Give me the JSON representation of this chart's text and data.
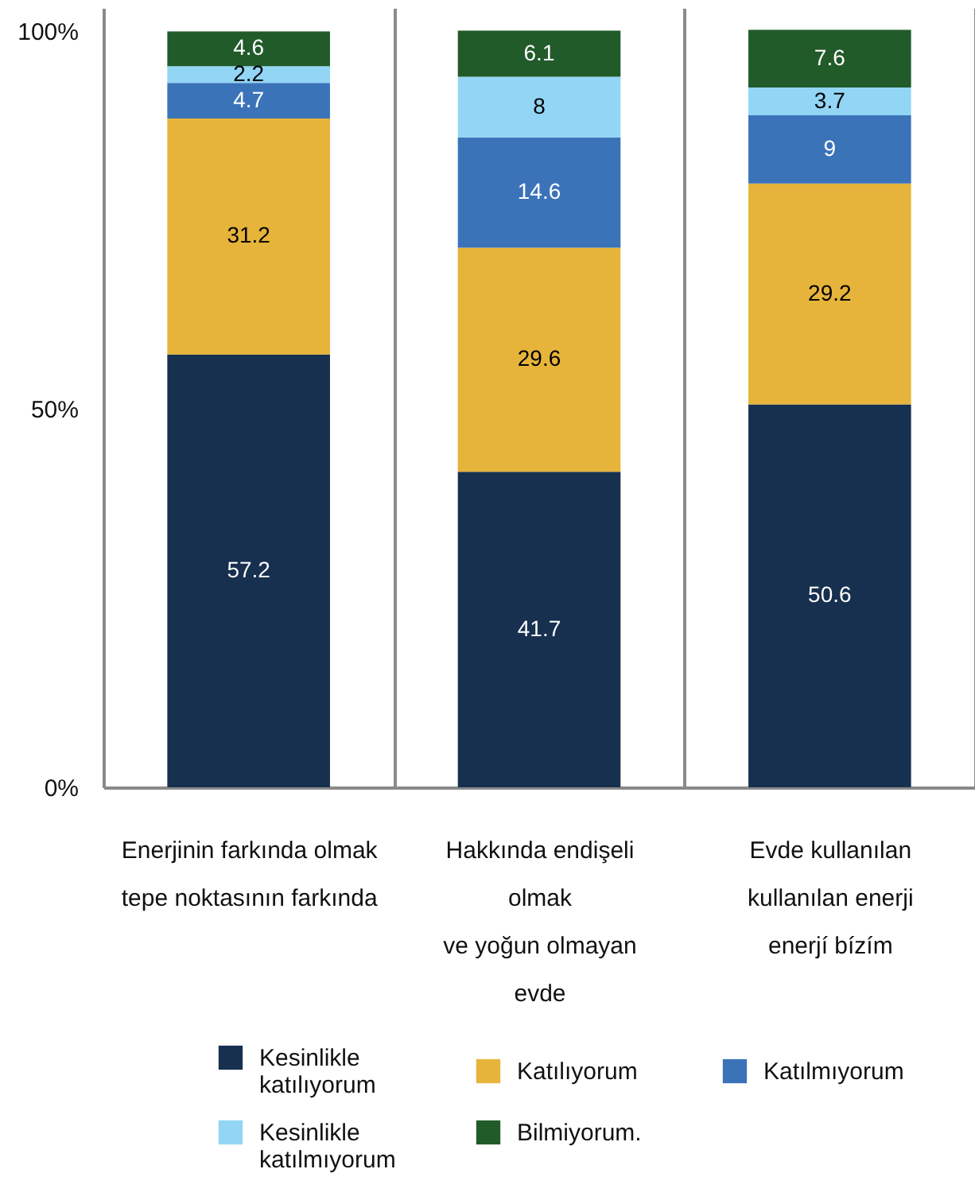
{
  "chart_data": {
    "type": "bar",
    "stacked": true,
    "data_labels": true,
    "grid": "x",
    "legend": "bottom",
    "categories": [
      "Enerjinin farkında olmak\ntepe noktasının farkında",
      "Hakkında endişeli\nolmak\nve yoğun olmayan\nevde",
      "Evde kullanılan\nkullanılan enerji\nenerjí bízím"
    ],
    "ylim": [
      0,
      103
    ],
    "yticks": [
      {
        "value": 0,
        "label": "0%"
      },
      {
        "value": 50,
        "label": "50%"
      },
      {
        "value": 100,
        "label": "100%"
      }
    ],
    "series": [
      {
        "name": "Kesinlikle katılıyorum",
        "color": "#17304f",
        "values": [
          57.2,
          41.7,
          50.6
        ]
      },
      {
        "name": "Katılıyorum",
        "color": "#e6b43a",
        "values": [
          31.2,
          29.6,
          29.2
        ]
      },
      {
        "name": "Katılmıyorum",
        "color": "#3b73b9",
        "values": [
          4.7,
          14.6,
          9
        ]
      },
      {
        "name": "Kesinlikle katılmıyorum",
        "color": "#92d5f5",
        "values": [
          2.2,
          8,
          3.7
        ]
      },
      {
        "name": "Bilmiyorum.",
        "color": "#215b2a",
        "values": [
          4.6,
          6.1,
          7.6
        ]
      }
    ]
  }
}
